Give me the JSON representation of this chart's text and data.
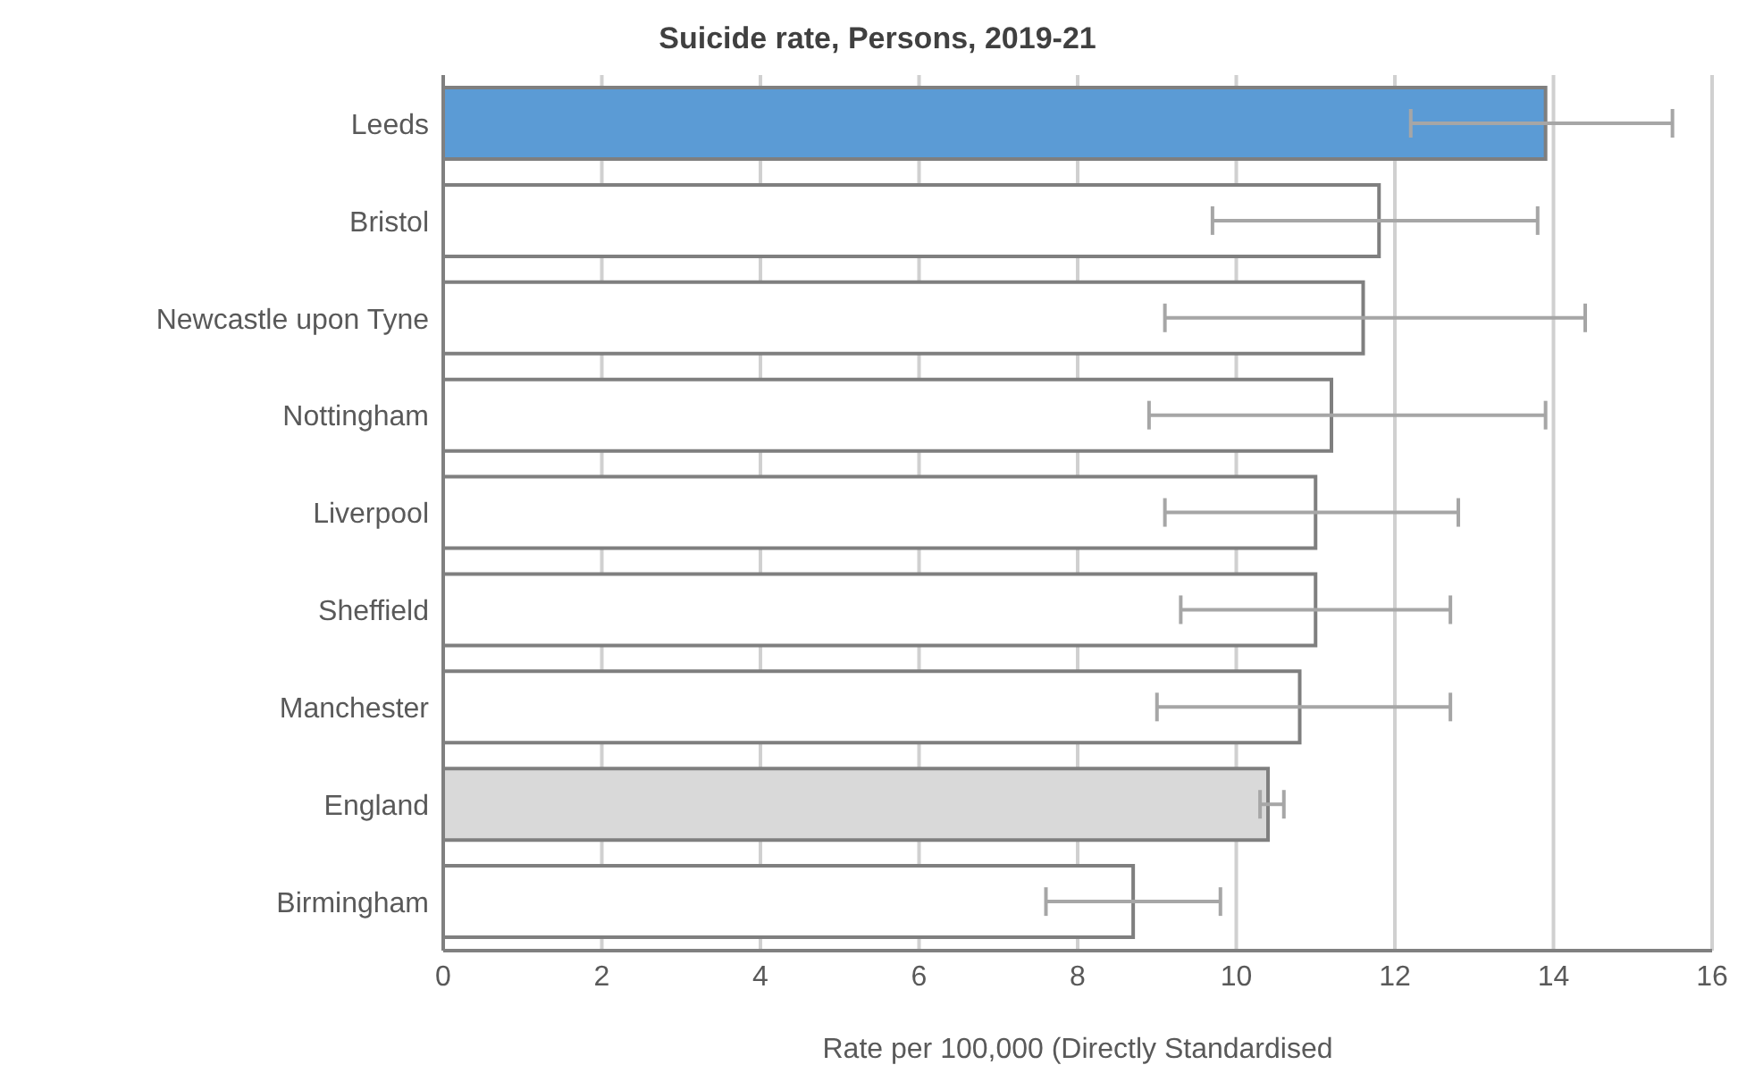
{
  "chart_data": {
    "type": "bar",
    "orientation": "horizontal",
    "title": "Suicide rate, Persons, 2019-21",
    "xlabel": "Rate per 100,000 (Directly Standardised",
    "categories": [
      "Leeds",
      "Bristol",
      "Newcastle upon Tyne",
      "Nottingham",
      "Liverpool",
      "Sheffield",
      "Manchester",
      "England",
      "Birmingham"
    ],
    "values": [
      13.9,
      11.8,
      11.6,
      11.2,
      11.0,
      11.0,
      10.8,
      10.4,
      8.7
    ],
    "colors": [
      "#5b9bd5",
      "#ffffff",
      "#ffffff",
      "#ffffff",
      "#ffffff",
      "#ffffff",
      "#ffffff",
      "#d9d9d9",
      "#ffffff"
    ],
    "errors": [
      [
        12.2,
        15.5
      ],
      [
        9.7,
        13.8
      ],
      [
        9.1,
        14.4
      ],
      [
        8.9,
        13.9
      ],
      [
        9.1,
        12.8
      ],
      [
        9.3,
        12.7
      ],
      [
        9.0,
        12.7
      ],
      [
        10.3,
        10.6
      ],
      [
        7.6,
        9.8
      ]
    ],
    "xlim": [
      0,
      16
    ],
    "xticks": [
      0,
      2,
      4,
      6,
      8,
      10,
      12,
      14,
      16
    ],
    "grid": "x",
    "legend": false
  }
}
